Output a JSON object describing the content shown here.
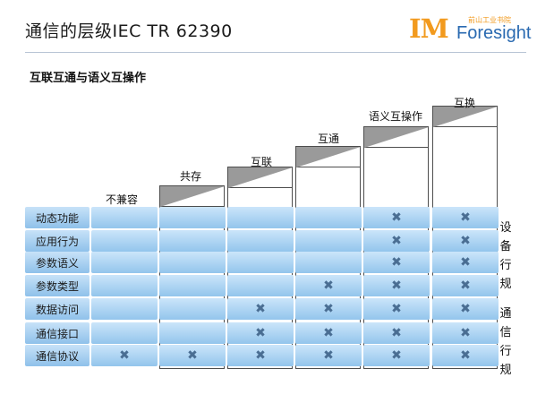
{
  "header": {
    "title": "通信的层级IEC TR 62390",
    "logo": {
      "im": "IM",
      "en": "Foresight",
      "cn": "前山工业书院"
    }
  },
  "subtitle": "互联互通与语义互操作",
  "columns": [
    {
      "label": "不兼容"
    },
    {
      "label": "共存"
    },
    {
      "label": "互联"
    },
    {
      "label": "互通"
    },
    {
      "label": "语义互操作"
    },
    {
      "label": "互换"
    }
  ],
  "rows": [
    {
      "label": "动态功能",
      "marks": [
        false,
        false,
        false,
        false,
        true,
        true
      ]
    },
    {
      "label": "应用行为",
      "marks": [
        false,
        false,
        false,
        false,
        true,
        true
      ]
    },
    {
      "label": "参数语义",
      "marks": [
        false,
        false,
        false,
        false,
        true,
        true
      ]
    },
    {
      "label": "参数类型",
      "marks": [
        false,
        false,
        false,
        true,
        true,
        true
      ]
    },
    {
      "label": "数据访问",
      "marks": [
        false,
        false,
        true,
        true,
        true,
        true
      ]
    },
    {
      "label": "通信接口",
      "marks": [
        false,
        false,
        true,
        true,
        true,
        true
      ]
    },
    {
      "label": "通信协议",
      "marks": [
        true,
        true,
        true,
        true,
        true,
        true
      ]
    }
  ],
  "mark_symbol": "✖",
  "side_labels": [
    {
      "text": "设备行规"
    },
    {
      "text": "通信行规"
    }
  ],
  "colors": {
    "cell": "#a9d2f2",
    "mark": "#4a6e93",
    "logo_orange": "#f29a1e",
    "logo_blue": "#2a6ab1"
  }
}
